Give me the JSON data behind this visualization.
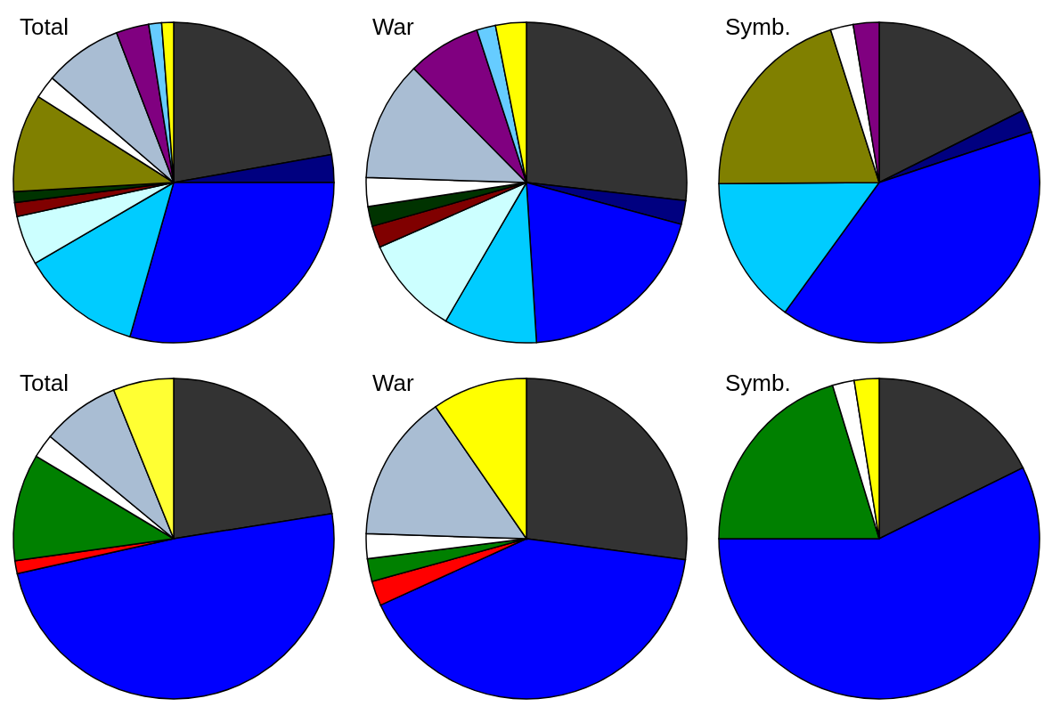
{
  "chart_data": [
    {
      "type": "pie",
      "title": "Total",
      "categories": [
        null,
        null,
        null,
        null,
        null,
        null,
        null,
        null,
        null,
        null,
        null,
        null,
        null
      ],
      "values": [
        22.2,
        2.8,
        29.4,
        12.2,
        5.0,
        1.4,
        1.1,
        9.9,
        2.3,
        7.9,
        3.3,
        1.3,
        1.2
      ],
      "colors": [
        "#333333",
        "#000080",
        "#0000ff",
        "#00ccff",
        "#ccffff",
        "#800000",
        "#003300",
        "#808000",
        "#ffffff",
        "#a9bdd3",
        "#800080",
        "#66ccff",
        "#ffff00"
      ]
    },
    {
      "type": "pie",
      "title": "War",
      "categories": [
        null,
        null,
        null,
        null,
        null,
        null,
        null,
        null,
        null,
        null,
        null,
        null
      ],
      "values": [
        26.8,
        2.4,
        19.8,
        9.4,
        10.0,
        2.2,
        2.0,
        2.9,
        12.1,
        7.4,
        1.9,
        3.1
      ],
      "colors": [
        "#333333",
        "#000080",
        "#0000ff",
        "#00ccff",
        "#ccffff",
        "#800000",
        "#003300",
        "#ffffff",
        "#a9bdd3",
        "#800080",
        "#66ccff",
        "#ffff00"
      ]
    },
    {
      "type": "pie",
      "title": "Symb.",
      "categories": [
        null,
        null,
        null,
        null,
        null,
        null,
        null
      ],
      "values": [
        17.6,
        2.3,
        40.1,
        14.9,
        20.2,
        2.3,
        2.6
      ],
      "colors": [
        "#333333",
        "#000080",
        "#0000ff",
        "#00ccff",
        "#808000",
        "#ffffff",
        "#800080"
      ]
    },
    {
      "type": "pie",
      "title": "Total",
      "categories": [
        null,
        null,
        null,
        null,
        null,
        null,
        null
      ],
      "values": [
        22.5,
        49.0,
        1.3,
        10.8,
        2.4,
        7.9,
        6.1
      ],
      "colors": [
        "#333333",
        "#0000ff",
        "#ff0000",
        "#008000",
        "#ffffff",
        "#a9bdd3",
        "#ffff33"
      ]
    },
    {
      "type": "pie",
      "title": "War",
      "categories": [
        null,
        null,
        null,
        null,
        null,
        null,
        null
      ],
      "values": [
        27.1,
        41.1,
        2.5,
        2.3,
        2.5,
        14.9,
        9.6
      ],
      "colors": [
        "#333333",
        "#0000ff",
        "#ff0000",
        "#008000",
        "#ffffff",
        "#a9bdd3",
        "#ffff00"
      ]
    },
    {
      "type": "pie",
      "title": "Symb.",
      "categories": [
        null,
        null,
        null,
        null,
        null
      ],
      "values": [
        17.7,
        57.3,
        20.3,
        2.2,
        2.5
      ],
      "colors": [
        "#333333",
        "#0000ff",
        "#008000",
        "#ffffff",
        "#ffff00"
      ]
    }
  ]
}
